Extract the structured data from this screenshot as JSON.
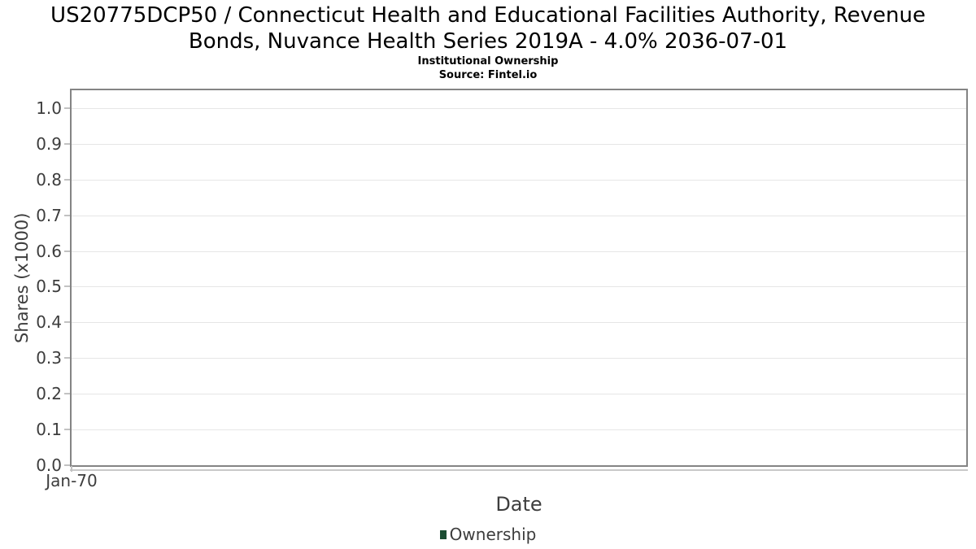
{
  "header": {
    "title_line1": "US20775DCP50 / Connecticut Health and Educational Facilities Authority, Revenue",
    "title_line2": "Bonds, Nuvance Health Series 2019A - 4.0% 2036-07-01",
    "subtitle": "Institutional Ownership",
    "source": "Source: Fintel.io"
  },
  "chart_data": {
    "type": "line",
    "title": "US20775DCP50 / Connecticut Health and Educational Facilities Authority, Revenue Bonds, Nuvance Health Series 2019A - 4.0% 2036-07-01",
    "subtitle": "Institutional Ownership",
    "source": "Source: Fintel.io",
    "xlabel": "Date",
    "ylabel": "Shares (x1000)",
    "x_tick_labels": [
      "Jan-70"
    ],
    "y_tick_labels": [
      "0.0",
      "0.1",
      "0.2",
      "0.3",
      "0.4",
      "0.5",
      "0.6",
      "0.7",
      "0.8",
      "0.9",
      "1.0"
    ],
    "ylim": [
      0,
      1.05
    ],
    "grid": true,
    "legend_position": "bottom-center",
    "series": [
      {
        "name": "Ownership",
        "color": "#1b4d32",
        "x": [],
        "values": []
      }
    ]
  },
  "colors": {
    "series_green": "#1b4d32",
    "grid_line": "#e6e6e6",
    "plot_border": "#848484",
    "axis_line": "#c9c9c9",
    "tick_mark": "#c2c2c2",
    "text_title": "#000000",
    "text_axis": "#3d3d3d",
    "background": "#ffffff"
  }
}
